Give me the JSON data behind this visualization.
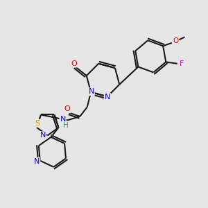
{
  "background_color": "#e6e6e6",
  "bond_color": "#1a1a1a",
  "atom_colors": {
    "N": "#0000ee",
    "O": "#ee0000",
    "S": "#ccaa00",
    "F": "#dd00dd",
    "C": "#1a1a1a",
    "H": "#448888"
  },
  "figsize": [
    3.0,
    3.0
  ],
  "dpi": 100
}
